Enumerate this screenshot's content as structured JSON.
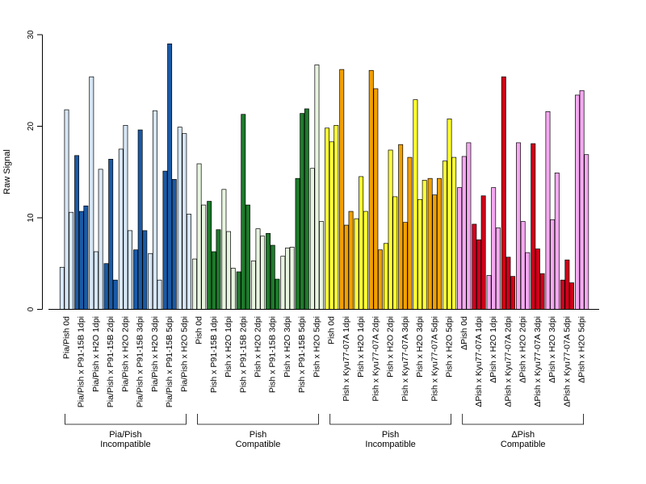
{
  "chart_data": {
    "type": "bar",
    "ylabel": "Raw Signal",
    "ylim": [
      0,
      30
    ],
    "yticks": [
      "0",
      "10",
      "20",
      "30"
    ],
    "grid": false,
    "bars_per_category": 3,
    "categories": [
      "Pia/Pish 0d",
      "Pia/Pish x P91-15B 1dpi",
      "Pia/Pish x H2O 1dpi",
      "Pia/Pish x P91-15B 2dpi",
      "Pia/Pish x H2O 2dpi",
      "Pia/Pish x P91-15B 3dpi",
      "Pia/Pish x H2O 3dpi",
      "Pia/Pish x P91-15B 5dpi",
      "Pia/Pish x H2O 5dpi",
      "Pish 0d",
      "Pish x P91-15B 1dpi",
      "Pish x H2O 1dpi",
      "Pish x P91-15B 2dpi",
      "Pish x H2O 2dpi",
      "Pish x P91-15B 3dpi",
      "Pish x H2O 3dpi",
      "Pish x P91-15B 5dpi",
      "Pish x H2O 5dpi",
      "Pish 0d",
      "Pish x Kyu77-07A 1dpi",
      "Pish x H2O 1dpi",
      "Pish x Kyu77-07A 2dpi",
      "Pish x H2O 2dpi",
      "Pish x Kyu77-07A 3dpi",
      "Pish x H2O 3dpi",
      "Pish x Kyu77-07A 5dpi",
      "Pish x H2O 5dpi",
      "ΔPish 0d",
      "ΔPish x Kyu77-07A 1dpi",
      "ΔPish x H2O 1dpi",
      "ΔPish x Kyu77-07A 2dpi",
      "ΔPish x H2O 2dpi",
      "ΔPish x Kyu77-07A 3dpi",
      "ΔPish x H2O 3dpi",
      "ΔPish x Kyu77-07A 5dpi",
      "ΔPish x H2O 5dpi"
    ],
    "values": [
      [
        4.6,
        21.8,
        10.6
      ],
      [
        16.8,
        10.7,
        11.3
      ],
      [
        25.4,
        6.3,
        15.3
      ],
      [
        5.0,
        16.4,
        3.2
      ],
      [
        17.5,
        20.1,
        8.6
      ],
      [
        6.5,
        19.6,
        8.6
      ],
      [
        6.1,
        21.7,
        3.2
      ],
      [
        15.1,
        29.0,
        14.2
      ],
      [
        19.9,
        19.2,
        10.4
      ],
      [
        5.5,
        15.9,
        11.4
      ],
      [
        11.8,
        6.3,
        8.7
      ],
      [
        13.1,
        8.5,
        4.5
      ],
      [
        4.1,
        21.3,
        11.4
      ],
      [
        5.3,
        8.8,
        8.0
      ],
      [
        8.3,
        7.0,
        3.3
      ],
      [
        5.8,
        6.7,
        6.8
      ],
      [
        14.3,
        21.4,
        21.9
      ],
      [
        15.4,
        26.7,
        9.6
      ],
      [
        19.8,
        18.3,
        20.1
      ],
      [
        26.2,
        9.2,
        10.7
      ],
      [
        9.9,
        14.5,
        10.7
      ],
      [
        26.1,
        24.1,
        6.5
      ],
      [
        7.2,
        17.4,
        12.3
      ],
      [
        18.0,
        9.5,
        16.6
      ],
      [
        22.9,
        12.0,
        14.1
      ],
      [
        14.3,
        12.5,
        14.3
      ],
      [
        16.2,
        20.8,
        16.6
      ],
      [
        13.3,
        16.7,
        18.2
      ],
      [
        9.3,
        7.6,
        12.4
      ],
      [
        3.7,
        13.3,
        8.9
      ],
      [
        25.4,
        5.7,
        3.6
      ],
      [
        18.2,
        9.6,
        6.2
      ],
      [
        18.1,
        6.6,
        3.9
      ],
      [
        21.6,
        9.8,
        14.9
      ],
      [
        3.2,
        5.4,
        2.9
      ],
      [
        23.4,
        23.9,
        16.9
      ]
    ],
    "category_colors": [
      "#d6e6f5",
      "#1a5aa6",
      "#d6e6f5",
      "#1a5aa6",
      "#d6e6f5",
      "#1a5aa6",
      "#d6e6f5",
      "#1a5aa6",
      "#d6e6f5",
      "#e8f5e0",
      "#1e7a2b",
      "#e8f5e0",
      "#1e7a2b",
      "#e8f5e0",
      "#1e7a2b",
      "#e8f5e0",
      "#1e7a2b",
      "#e8f5e0",
      "#ffff33",
      "#f2a000",
      "#ffff33",
      "#f2a000",
      "#ffff33",
      "#f2a000",
      "#ffff33",
      "#f2a000",
      "#ffff33",
      "#f5a8f0",
      "#d0001a",
      "#f5a8f0",
      "#d0001a",
      "#f5a8f0",
      "#d0001a",
      "#f5a8f0",
      "#d0001a",
      "#f5a8f0"
    ],
    "groups": [
      {
        "line1": "Pia/Pish",
        "line2": "Incompatible",
        "first": 0,
        "last": 8
      },
      {
        "line1": "Pish",
        "line2": "Compatible",
        "first": 9,
        "last": 17
      },
      {
        "line1": "Pish",
        "line2": "Incompatible",
        "first": 18,
        "last": 26
      },
      {
        "line1": "ΔPish",
        "line2": "Compatible",
        "first": 27,
        "last": 35
      }
    ]
  }
}
